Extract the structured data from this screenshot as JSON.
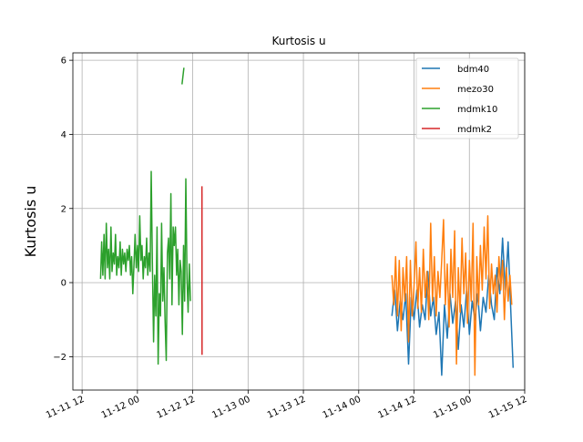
{
  "chart_data": {
    "type": "line",
    "title": "Kurtosis u",
    "xlabel": "",
    "ylabel": "Kurtosis u",
    "grid": true,
    "legend_position": "top-right",
    "xlim": [
      "2024-11-11T10:00",
      "2024-11-15T12:00"
    ],
    "ylim": [
      -2.9,
      6.2
    ],
    "xticks": [
      {
        "value": "2024-11-11T12:00",
        "label": "11-11 12"
      },
      {
        "value": "2024-11-12T00:00",
        "label": "11-12 00"
      },
      {
        "value": "2024-11-12T12:00",
        "label": "11-12 12"
      },
      {
        "value": "2024-11-13T00:00",
        "label": "11-13 00"
      },
      {
        "value": "2024-11-13T12:00",
        "label": "11-13 12"
      },
      {
        "value": "2024-11-14T00:00",
        "label": "11-14 00"
      },
      {
        "value": "2024-11-14T12:00",
        "label": "11-14 12"
      },
      {
        "value": "2024-11-15T00:00",
        "label": "11-15 00"
      },
      {
        "value": "2024-11-15T12:00",
        "label": "11-15 12"
      }
    ],
    "yticks": [
      -2,
      0,
      2,
      4,
      6
    ],
    "series": [
      {
        "name": "bdm40",
        "color": "#1f77b4",
        "points": [
          [
            "2024-11-14T07:12",
            -0.9
          ],
          [
            "2024-11-14T07:48",
            -0.2
          ],
          [
            "2024-11-14T08:24",
            -1.3
          ],
          [
            "2024-11-14T09:00",
            -0.5
          ],
          [
            "2024-11-14T09:36",
            -1.0
          ],
          [
            "2024-11-14T10:12",
            -0.3
          ],
          [
            "2024-11-14T10:48",
            -2.2
          ],
          [
            "2024-11-14T11:24",
            -0.4
          ],
          [
            "2024-11-14T12:00",
            -1.0
          ],
          [
            "2024-11-14T12:36",
            -0.2
          ],
          [
            "2024-11-14T13:12",
            -1.2
          ],
          [
            "2024-11-14T13:48",
            -0.6
          ],
          [
            "2024-11-14T14:24",
            -1.0
          ],
          [
            "2024-11-14T15:00",
            0.3
          ],
          [
            "2024-11-14T15:36",
            -0.9
          ],
          [
            "2024-11-14T16:12",
            -0.4
          ],
          [
            "2024-11-14T16:48",
            -1.4
          ],
          [
            "2024-11-14T17:24",
            -0.8
          ],
          [
            "2024-11-14T18:00",
            -2.5
          ],
          [
            "2024-11-14T18:36",
            -0.6
          ],
          [
            "2024-11-14T19:12",
            -1.5
          ],
          [
            "2024-11-14T19:48",
            -0.3
          ],
          [
            "2024-11-14T20:24",
            -1.1
          ],
          [
            "2024-11-14T21:00",
            -0.5
          ],
          [
            "2024-11-14T21:36",
            -1.8
          ],
          [
            "2024-11-14T22:12",
            -0.6
          ],
          [
            "2024-11-14T22:48",
            -1.2
          ],
          [
            "2024-11-14T23:24",
            -0.2
          ],
          [
            "2024-11-15T00:00",
            -1.4
          ],
          [
            "2024-11-15T00:36",
            -0.5
          ],
          [
            "2024-11-15T01:12",
            -1.0
          ],
          [
            "2024-11-15T01:48",
            -0.3
          ],
          [
            "2024-11-15T02:24",
            -1.3
          ],
          [
            "2024-11-15T03:00",
            -0.4
          ],
          [
            "2024-11-15T03:36",
            -0.8
          ],
          [
            "2024-11-15T04:12",
            0.2
          ],
          [
            "2024-11-15T04:48",
            -0.6
          ],
          [
            "2024-11-15T05:24",
            -1.0
          ],
          [
            "2024-11-15T06:00",
            0.4
          ],
          [
            "2024-11-15T06:36",
            -0.3
          ],
          [
            "2024-11-15T07:12",
            1.2
          ],
          [
            "2024-11-15T07:48",
            -0.2
          ],
          [
            "2024-11-15T08:24",
            1.1
          ],
          [
            "2024-11-15T09:00",
            -0.8
          ],
          [
            "2024-11-15T09:30",
            -2.3
          ]
        ]
      },
      {
        "name": "mezo30",
        "color": "#ff7f0e",
        "points": [
          [
            "2024-11-14T07:12",
            0.2
          ],
          [
            "2024-11-14T07:36",
            -0.6
          ],
          [
            "2024-11-14T08:00",
            0.7
          ],
          [
            "2024-11-14T08:24",
            -0.9
          ],
          [
            "2024-11-14T08:48",
            0.6
          ],
          [
            "2024-11-14T09:12",
            -1.3
          ],
          [
            "2024-11-14T09:36",
            0.4
          ],
          [
            "2024-11-14T10:00",
            -0.5
          ],
          [
            "2024-11-14T10:24",
            0.7
          ],
          [
            "2024-11-14T10:48",
            -1.6
          ],
          [
            "2024-11-14T11:12",
            0.6
          ],
          [
            "2024-11-14T11:36",
            -0.9
          ],
          [
            "2024-11-14T12:00",
            -0.1
          ],
          [
            "2024-11-14T12:24",
            1.1
          ],
          [
            "2024-11-14T12:48",
            -0.7
          ],
          [
            "2024-11-14T13:12",
            0.4
          ],
          [
            "2024-11-14T13:36",
            -0.8
          ],
          [
            "2024-11-14T14:00",
            0.9
          ],
          [
            "2024-11-14T14:24",
            -0.4
          ],
          [
            "2024-11-14T14:48",
            0.3
          ],
          [
            "2024-11-14T15:12",
            -1.0
          ],
          [
            "2024-11-14T15:36",
            1.6
          ],
          [
            "2024-11-14T16:00",
            -0.5
          ],
          [
            "2024-11-14T16:24",
            0.7
          ],
          [
            "2024-11-14T16:48",
            -0.9
          ],
          [
            "2024-11-14T17:12",
            0.3
          ],
          [
            "2024-11-14T17:36",
            -0.4
          ],
          [
            "2024-11-14T18:00",
            0.6
          ],
          [
            "2024-11-14T18:24",
            1.7
          ],
          [
            "2024-11-14T18:48",
            -0.6
          ],
          [
            "2024-11-14T19:12",
            0.5
          ],
          [
            "2024-11-14T19:36",
            -1.2
          ],
          [
            "2024-11-14T20:00",
            0.9
          ],
          [
            "2024-11-14T20:24",
            -0.4
          ],
          [
            "2024-11-14T20:48",
            1.4
          ],
          [
            "2024-11-14T21:12",
            -2.2
          ],
          [
            "2024-11-14T21:36",
            0.4
          ],
          [
            "2024-11-14T22:00",
            -0.8
          ],
          [
            "2024-11-14T22:24",
            1.2
          ],
          [
            "2024-11-14T22:48",
            -0.3
          ],
          [
            "2024-11-14T23:12",
            0.8
          ],
          [
            "2024-11-14T23:36",
            -1.1
          ],
          [
            "2024-11-15T00:00",
            0.6
          ],
          [
            "2024-11-15T00:24",
            -0.5
          ],
          [
            "2024-11-15T00:48",
            1.6
          ],
          [
            "2024-11-15T01:12",
            -2.5
          ],
          [
            "2024-11-15T01:36",
            0.7
          ],
          [
            "2024-11-15T02:00",
            -0.6
          ],
          [
            "2024-11-15T02:24",
            1.0
          ],
          [
            "2024-11-15T02:48",
            -0.2
          ],
          [
            "2024-11-15T03:12",
            1.5
          ],
          [
            "2024-11-15T03:36",
            0.1
          ],
          [
            "2024-11-15T04:00",
            1.8
          ],
          [
            "2024-11-15T04:24",
            -0.7
          ],
          [
            "2024-11-15T04:48",
            0.5
          ],
          [
            "2024-11-15T05:12",
            -0.3
          ],
          [
            "2024-11-15T05:36",
            0.2
          ],
          [
            "2024-11-15T06:00",
            -0.8
          ],
          [
            "2024-11-15T06:24",
            0.7
          ],
          [
            "2024-11-15T06:48",
            -0.2
          ],
          [
            "2024-11-15T07:12",
            0.6
          ],
          [
            "2024-11-15T07:36",
            -1.0
          ],
          [
            "2024-11-15T08:00",
            0.4
          ],
          [
            "2024-11-15T08:24",
            -0.5
          ],
          [
            "2024-11-15T08:48",
            0.2
          ],
          [
            "2024-11-15T09:12",
            -0.6
          ]
        ]
      },
      {
        "name": "mdmk10",
        "color": "#2ca02c",
        "segments": [
          [
            [
              "2024-11-11T16:00",
              0.1
            ],
            [
              "2024-11-11T16:15",
              1.1
            ],
            [
              "2024-11-11T16:30",
              0.2
            ],
            [
              "2024-11-11T16:45",
              1.3
            ],
            [
              "2024-11-11T17:00",
              0.1
            ],
            [
              "2024-11-11T17:15",
              1.6
            ],
            [
              "2024-11-11T17:30",
              0.4
            ],
            [
              "2024-11-11T17:45",
              0.9
            ],
            [
              "2024-11-11T18:00",
              0.1
            ],
            [
              "2024-11-11T18:15",
              1.5
            ],
            [
              "2024-11-11T18:30",
              0.3
            ],
            [
              "2024-11-11T18:45",
              0.8
            ],
            [
              "2024-11-11T19:00",
              0.5
            ],
            [
              "2024-11-11T19:15",
              1.3
            ],
            [
              "2024-11-11T19:30",
              0.2
            ],
            [
              "2024-11-11T19:45",
              0.7
            ],
            [
              "2024-11-11T20:00",
              0.4
            ],
            [
              "2024-11-11T20:15",
              1.1
            ],
            [
              "2024-11-11T20:30",
              0.2
            ],
            [
              "2024-11-11T20:45",
              0.9
            ],
            [
              "2024-11-11T21:00",
              0.5
            ],
            [
              "2024-11-11T21:15",
              0.8
            ],
            [
              "2024-11-11T21:30",
              0.3
            ],
            [
              "2024-11-11T21:45",
              0.9
            ],
            [
              "2024-11-11T22:00",
              0.6
            ],
            [
              "2024-11-11T22:15",
              1.0
            ],
            [
              "2024-11-11T22:30",
              0.2
            ],
            [
              "2024-11-11T22:45",
              0.7
            ],
            [
              "2024-11-11T23:00",
              -0.3
            ],
            [
              "2024-11-11T23:15",
              0.5
            ],
            [
              "2024-11-11T23:30",
              1.3
            ],
            [
              "2024-11-11T23:45",
              0.4
            ],
            [
              "2024-11-12T00:00",
              1.0
            ],
            [
              "2024-11-12T00:15",
              0.3
            ],
            [
              "2024-11-12T00:30",
              1.8
            ],
            [
              "2024-11-12T00:45",
              0.6
            ],
            [
              "2024-11-12T01:00",
              1.0
            ],
            [
              "2024-11-12T01:15",
              0.1
            ],
            [
              "2024-11-12T01:30",
              0.7
            ],
            [
              "2024-11-12T01:45",
              0.4
            ],
            [
              "2024-11-12T02:00",
              1.2
            ],
            [
              "2024-11-12T02:15",
              0.2
            ],
            [
              "2024-11-12T02:30",
              0.8
            ],
            [
              "2024-11-12T02:45",
              0.3
            ],
            [
              "2024-11-12T03:00",
              3.0
            ],
            [
              "2024-11-12T03:15",
              0.5
            ],
            [
              "2024-11-12T03:30",
              -1.6
            ],
            [
              "2024-11-12T03:45",
              0.2
            ],
            [
              "2024-11-12T04:00",
              -0.9
            ],
            [
              "2024-11-12T04:15",
              1.5
            ],
            [
              "2024-11-12T04:30",
              -2.2
            ],
            [
              "2024-11-12T04:45",
              -0.3
            ],
            [
              "2024-11-12T05:00",
              -0.9
            ],
            [
              "2024-11-12T05:15",
              1.6
            ],
            [
              "2024-11-12T05:30",
              -0.5
            ],
            [
              "2024-11-12T05:45",
              0.4
            ],
            [
              "2024-11-12T06:00",
              -1.0
            ],
            [
              "2024-11-12T06:15",
              -2.1
            ],
            [
              "2024-11-12T06:30",
              0.8
            ],
            [
              "2024-11-12T06:45",
              1.2
            ],
            [
              "2024-11-12T07:00",
              0.1
            ],
            [
              "2024-11-12T07:15",
              2.4
            ],
            [
              "2024-11-12T07:30",
              -0.6
            ],
            [
              "2024-11-12T07:45",
              1.5
            ],
            [
              "2024-11-12T08:00",
              1.0
            ],
            [
              "2024-11-12T08:15",
              1.5
            ],
            [
              "2024-11-12T08:30",
              0.2
            ],
            [
              "2024-11-12T08:45",
              0.9
            ],
            [
              "2024-11-12T09:00",
              -0.6
            ],
            [
              "2024-11-12T09:15",
              0.6
            ],
            [
              "2024-11-12T09:30",
              0.3
            ],
            [
              "2024-11-12T09:45",
              -1.4
            ],
            [
              "2024-11-12T10:00",
              1.0
            ],
            [
              "2024-11-12T10:15",
              -0.5
            ],
            [
              "2024-11-12T10:30",
              2.8
            ],
            [
              "2024-11-12T10:45",
              0.1
            ],
            [
              "2024-11-12T11:00",
              -0.8
            ],
            [
              "2024-11-12T11:15",
              0.5
            ],
            [
              "2024-11-12T11:30",
              -0.5
            ]
          ],
          [
            [
              "2024-11-12T09:40",
              5.35
            ],
            [
              "2024-11-12T10:05",
              5.8
            ]
          ]
        ]
      },
      {
        "name": "mdmk2",
        "color": "#d62728",
        "points": [
          [
            "2024-11-12T14:00",
            2.6
          ],
          [
            "2024-11-12T14:01",
            -1.95
          ]
        ]
      }
    ]
  }
}
